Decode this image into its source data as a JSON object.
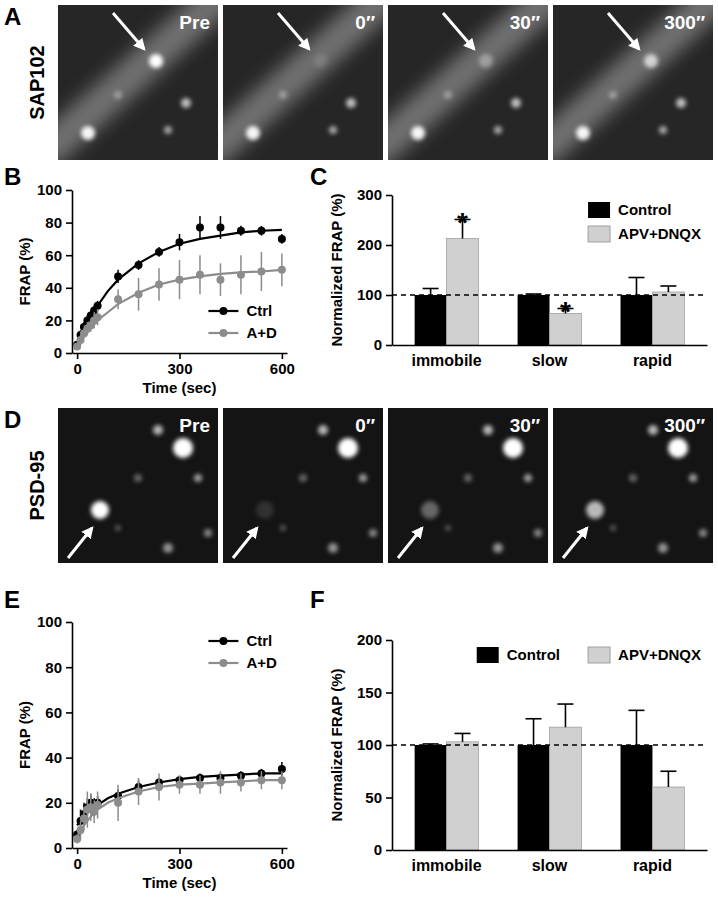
{
  "image_rows": [
    {
      "label": "A",
      "protein": "SAP102",
      "frames": [
        "Pre",
        "0″",
        "30″",
        "300″"
      ]
    },
    {
      "label": "D",
      "protein": "PSD-95",
      "frames": [
        "Pre",
        "0″",
        "30″",
        "300″"
      ]
    }
  ],
  "chart_data": [
    {
      "type": "line",
      "title": "B",
      "x_label": "Time (sec)",
      "y_label": "FRAP (%)",
      "xlim": [
        -15,
        615
      ],
      "xticks": [
        0,
        300,
        600
      ],
      "ylim": [
        0,
        100
      ],
      "yticks": [
        0,
        20,
        40,
        60,
        80,
        100
      ],
      "legend": "lower right",
      "marker": "circle",
      "x": [
        0,
        10,
        20,
        30,
        40,
        50,
        60,
        120,
        180,
        240,
        300,
        360,
        420,
        480,
        540,
        600
      ],
      "series": [
        {
          "name": "Ctrl",
          "color": "#000000",
          "values": [
            5,
            11,
            16,
            20,
            23,
            26,
            29,
            47,
            54,
            62,
            68,
            77,
            77,
            75,
            75,
            70
          ],
          "errors": [
            2,
            3,
            3,
            3,
            3,
            3,
            3,
            4,
            3,
            3,
            5,
            7,
            7,
            3,
            3,
            3
          ],
          "fit": {
            "x": [
              0,
              20,
              40,
              60,
              90,
              120,
              180,
              240,
              300,
              360,
              420,
              480,
              540,
              600
            ],
            "values": [
              5,
              14,
              22,
              29,
              38,
              45,
              55,
              62,
              67,
              70,
              72,
              74,
              75,
              75.5
            ]
          }
        },
        {
          "name": "A+D",
          "color": "#8c8c8c",
          "values": [
            4,
            8,
            12,
            15,
            17,
            20,
            22,
            33,
            36,
            42,
            45,
            48,
            45,
            48,
            50,
            51
          ],
          "errors": [
            2,
            3,
            3,
            4,
            4,
            5,
            5,
            6,
            10,
            10,
            12,
            12,
            10,
            12,
            12,
            10
          ],
          "fit": {
            "x": [
              0,
              20,
              40,
              60,
              90,
              120,
              180,
              240,
              300,
              360,
              420,
              480,
              540,
              600
            ],
            "values": [
              4,
              10,
              15,
              20,
              25,
              30,
              37,
              42,
              45,
              47,
              48.5,
              49.5,
              50,
              51
            ]
          }
        }
      ]
    },
    {
      "type": "bar",
      "title": "C",
      "y_label": "Normalized FRAP (%)",
      "categories": [
        "immobile",
        "slow",
        "rapid"
      ],
      "ylim": [
        0,
        300
      ],
      "yticks": [
        0,
        100,
        200,
        300
      ],
      "legend": "upper right",
      "reference": 100,
      "series": [
        {
          "name": "Control",
          "color": "#000000",
          "values": [
            100,
            100,
            100
          ],
          "errors": [
            13,
            2,
            35
          ]
        },
        {
          "name": "APV+DNQX",
          "color": "#d0d0d0",
          "values": [
            213,
            63,
            106
          ],
          "errors": [
            38,
            10,
            12
          ]
        }
      ],
      "annotations": [
        {
          "text": "*",
          "series": 1,
          "category": 0
        },
        {
          "text": "*",
          "series": 1,
          "category": 1
        }
      ]
    },
    {
      "type": "line",
      "title": "E",
      "x_label": "Time (sec)",
      "y_label": "FRAP (%)",
      "xlim": [
        -15,
        615
      ],
      "xticks": [
        0,
        300,
        600
      ],
      "ylim": [
        0,
        100
      ],
      "yticks": [
        0,
        20,
        40,
        60,
        80,
        100
      ],
      "legend": "upper right",
      "marker": "circle",
      "x": [
        0,
        10,
        20,
        30,
        40,
        50,
        60,
        120,
        180,
        240,
        300,
        360,
        420,
        480,
        540,
        600
      ],
      "series": [
        {
          "name": "Ctrl",
          "color": "#000000",
          "values": [
            6,
            12,
            15,
            18,
            20,
            18,
            20,
            23,
            27,
            29,
            30,
            31,
            31,
            32,
            33,
            35
          ],
          "errors": [
            2,
            5,
            5,
            4,
            4,
            4,
            3,
            3,
            3,
            2,
            2,
            2,
            2,
            2,
            2,
            3
          ],
          "fit": {
            "x": [
              0,
              20,
              40,
              60,
              90,
              120,
              180,
              240,
              300,
              360,
              420,
              480,
              540,
              600
            ],
            "values": [
              10,
              14,
              17,
              19,
              22,
              24,
              27,
              29,
              30.5,
              31.5,
              32,
              32.5,
              33,
              33
            ]
          }
        },
        {
          "name": "A+D",
          "color": "#8c8c8c",
          "values": [
            4,
            8,
            13,
            17,
            18,
            16,
            19,
            20,
            25,
            27,
            28,
            28,
            29,
            29,
            30,
            30
          ],
          "errors": [
            2,
            4,
            5,
            8,
            6,
            5,
            6,
            8,
            6,
            6,
            4,
            4,
            5,
            4,
            4,
            4
          ],
          "fit": {
            "x": [
              0,
              20,
              40,
              60,
              90,
              120,
              180,
              240,
              300,
              360,
              420,
              480,
              540,
              600
            ],
            "values": [
              5,
              10,
              14,
              17,
              20,
              22,
              25,
              27,
              28,
              28.5,
              29,
              29.5,
              30,
              30
            ]
          }
        }
      ]
    },
    {
      "type": "bar",
      "title": "F",
      "y_label": "Normalized FRAP (%)",
      "categories": [
        "immobile",
        "slow",
        "rapid"
      ],
      "ylim": [
        0,
        200
      ],
      "yticks": [
        0,
        50,
        100,
        150,
        200
      ],
      "legend": "top",
      "reference": 100,
      "series": [
        {
          "name": "Control",
          "color": "#000000",
          "values": [
            100,
            100,
            100
          ],
          "errors": [
            1,
            25,
            33
          ]
        },
        {
          "name": "APV+DNQX",
          "color": "#d0d0d0",
          "values": [
            103,
            117,
            60
          ],
          "errors": [
            8,
            22,
            15
          ]
        }
      ]
    }
  ]
}
